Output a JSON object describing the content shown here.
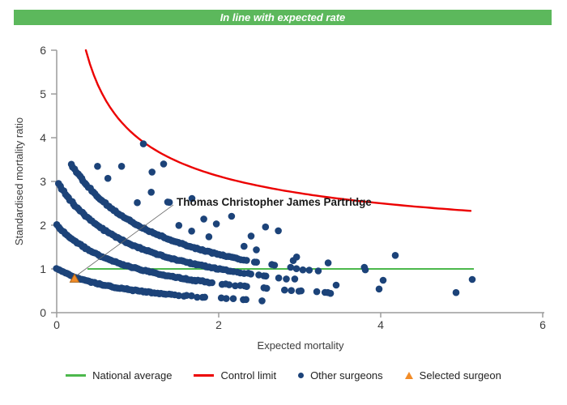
{
  "banner": {
    "label": "In line with expected rate",
    "color": "#5cb85c"
  },
  "legend": {
    "items": [
      {
        "label": "National average",
        "marker": "line",
        "color": "#4cb84c"
      },
      {
        "label": "Control limit",
        "marker": "line",
        "color": "#ec0000"
      },
      {
        "label": "Other surgeons",
        "marker": "dot",
        "color": "#1c4379"
      },
      {
        "label": "Selected surgeon",
        "marker": "triangle",
        "color": "#f28c28"
      }
    ]
  },
  "chart_data": {
    "type": "scatter",
    "title": "",
    "xlabel": "Expected mortality",
    "ylabel": "Standardised mortality ratio",
    "xlim": [
      0,
      6
    ],
    "ylim": [
      0,
      6
    ],
    "x_ticks": [
      0,
      2,
      4,
      6
    ],
    "y_ticks": [
      0,
      1,
      2,
      3,
      4,
      5,
      6
    ],
    "grid": false,
    "legend_position": "bottom",
    "national_average": {
      "y": 1,
      "x_from": 0.38,
      "x_to": 5.15,
      "color": "#4cb84c"
    },
    "control_limit": {
      "formula": "smr = 1 + 3/sqrt(expected)",
      "x_from": 0.36,
      "x_to": 5.15,
      "color": "#ec0000",
      "samples": [
        [
          0.36,
          6.0
        ],
        [
          0.5,
          5.24
        ],
        [
          1.0,
          4.0
        ],
        [
          1.5,
          3.45
        ],
        [
          2.0,
          3.12
        ],
        [
          2.5,
          2.9
        ],
        [
          3.0,
          2.73
        ],
        [
          3.5,
          2.6
        ],
        [
          4.0,
          2.5
        ],
        [
          4.5,
          2.41
        ],
        [
          5.0,
          2.34
        ],
        [
          5.15,
          2.32
        ]
      ]
    },
    "other_surgeons": {
      "color": "#1c4379",
      "band_curve": "smr = n / (expected + 1)",
      "bands": [
        {
          "n": 1,
          "x_from": 0.0,
          "x_to": 2.62,
          "style": "dense",
          "solid_until": 1.2
        },
        {
          "n": 2,
          "x_from": 0.0,
          "x_to": 3.42,
          "style": "dense",
          "solid_until": 1.7
        },
        {
          "n": 3,
          "x_from": 0.02,
          "x_to": 3.0,
          "style": "dense",
          "solid_until": 2.0
        },
        {
          "n": 4,
          "x_from": 0.18,
          "x_to": 3.3,
          "style": "dense",
          "solid_until": 2.1
        },
        {
          "n": 5,
          "x_from": 0.5,
          "x_to": 3.85,
          "style": "sparse"
        },
        {
          "n": 6,
          "x_from": 0.8,
          "x_to": 2.45,
          "style": "sparse"
        },
        {
          "n": 7,
          "x_from": 1.18,
          "x_to": 2.85,
          "style": "sparse"
        }
      ],
      "extra_points": [
        [
          1.07,
          3.86
        ],
        [
          1.32,
          3.4
        ],
        [
          1.37,
          2.53
        ],
        [
          2.92,
          1.19
        ],
        [
          3.38,
          0.44
        ],
        [
          3.45,
          0.63
        ],
        [
          3.81,
          0.98
        ],
        [
          3.98,
          0.54
        ],
        [
          4.03,
          0.74
        ],
        [
          4.18,
          1.31
        ],
        [
          4.93,
          0.46
        ],
        [
          5.13,
          0.76
        ]
      ]
    },
    "selected_surgeon": {
      "x": 0.22,
      "y": 0.78,
      "label": "Thomas Christopher James Partridge",
      "label_x": 1.48,
      "label_y": 2.52,
      "color": "#f28c28"
    }
  }
}
